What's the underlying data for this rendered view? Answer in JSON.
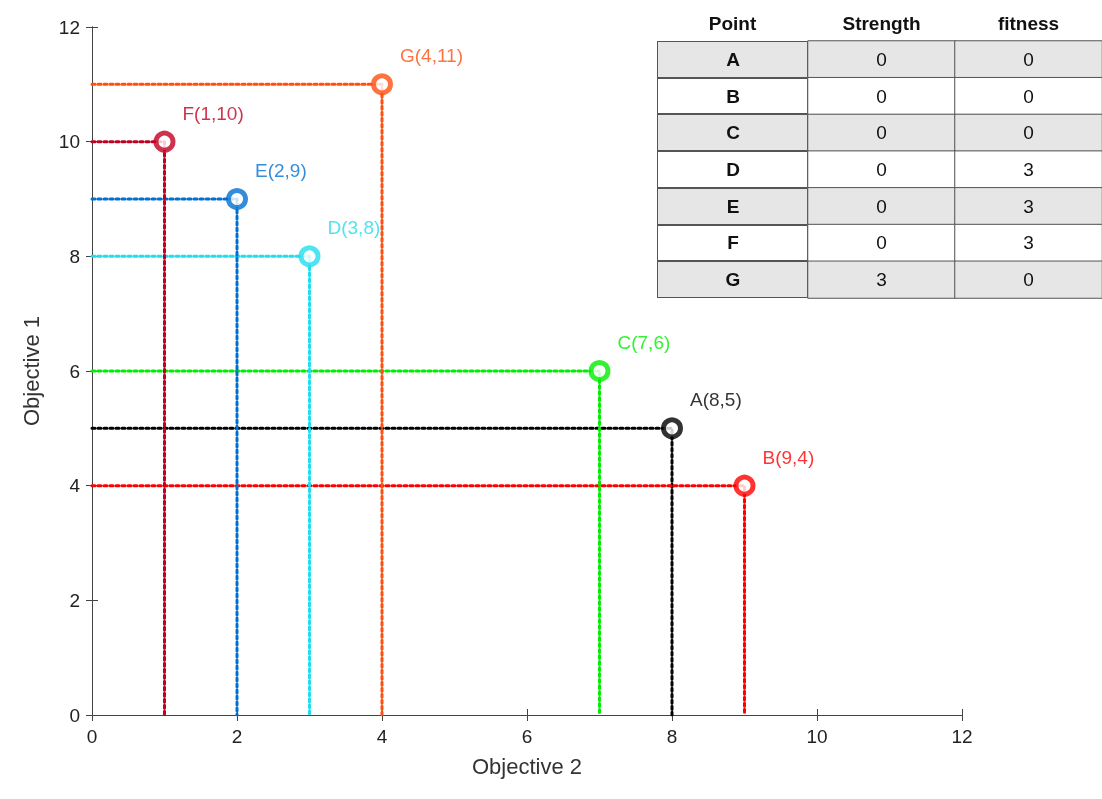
{
  "chart_data": [
    {
      "type": "scatter",
      "xlabel": "Objective 2",
      "ylabel": "Objective 1",
      "xlim": [
        0,
        12
      ],
      "ylim": [
        0,
        12
      ],
      "xticks": [
        0,
        2,
        4,
        6,
        8,
        10,
        12
      ],
      "yticks": [
        0,
        2,
        4,
        6,
        8,
        10,
        12
      ],
      "grid": false,
      "marker": "circle",
      "series": [
        {
          "type": "line",
          "x": [
            0,
            8,
            8
          ],
          "values": [
            5,
            5,
            0
          ],
          "color": "#000000",
          "line_style": "dotted",
          "marker": "none"
        },
        {
          "type": "line",
          "x": [
            0,
            9,
            9
          ],
          "values": [
            4,
            4,
            0
          ],
          "color": "#ff0000",
          "line_style": "dotted",
          "marker": "none"
        },
        {
          "type": "line",
          "x": [
            0,
            7,
            7
          ],
          "values": [
            6,
            6,
            0
          ],
          "color": "#00ee00",
          "line_style": "dotted",
          "marker": "none"
        },
        {
          "type": "line",
          "x": [
            0,
            3,
            3
          ],
          "values": [
            8,
            8,
            0
          ],
          "color": "#22ddee",
          "line_style": "dotted",
          "marker": "none"
        },
        {
          "type": "line",
          "x": [
            0,
            2,
            2
          ],
          "values": [
            9,
            9,
            0
          ],
          "color": "#0070d0",
          "line_style": "dotted",
          "marker": "none"
        },
        {
          "type": "line",
          "x": [
            0,
            1,
            1
          ],
          "values": [
            10,
            10,
            0
          ],
          "color": "#c00020",
          "line_style": "dotted",
          "marker": "none"
        },
        {
          "type": "line",
          "x": [
            0,
            4,
            4
          ],
          "values": [
            11,
            11,
            0
          ],
          "color": "#ff5010",
          "line_style": "dotted",
          "marker": "none"
        },
        {
          "type": "scatter",
          "x": [
            8,
            9,
            7,
            3,
            2,
            1,
            4
          ],
          "values": [
            5,
            4,
            6,
            8,
            9,
            10,
            11
          ],
          "colors": [
            "#000000",
            "#ff0000",
            "#00ee00",
            "#22ddee",
            "#0070d0",
            "#c00020",
            "#ff5010"
          ]
        }
      ],
      "annotations": [
        {
          "text": "A(8,5)",
          "x": 8,
          "y": 5
        },
        {
          "text": "B(9,4)",
          "x": 9,
          "y": 4
        },
        {
          "text": "C(7,6)",
          "x": 7,
          "y": 6
        },
        {
          "text": "D(3,8)",
          "x": 3,
          "y": 8
        },
        {
          "text": "E(2,9)",
          "x": 2,
          "y": 9
        },
        {
          "text": "F(1,10)",
          "x": 1,
          "y": 10
        },
        {
          "text": "G(4,11)",
          "x": 4,
          "y": 11
        }
      ]
    },
    {
      "type": "heatmap",
      "data_labels": true,
      "ylabel": "Point",
      "categories": [
        "Strength",
        "fitness"
      ],
      "y_categories": [
        "A",
        "B",
        "C",
        "D",
        "E",
        "F",
        "G"
      ],
      "cells": [
        [
          0,
          0
        ],
        [
          0,
          0
        ],
        [
          0,
          0
        ],
        [
          0,
          3
        ],
        [
          0,
          3
        ],
        [
          0,
          3
        ],
        [
          3,
          0
        ]
      ]
    }
  ]
}
